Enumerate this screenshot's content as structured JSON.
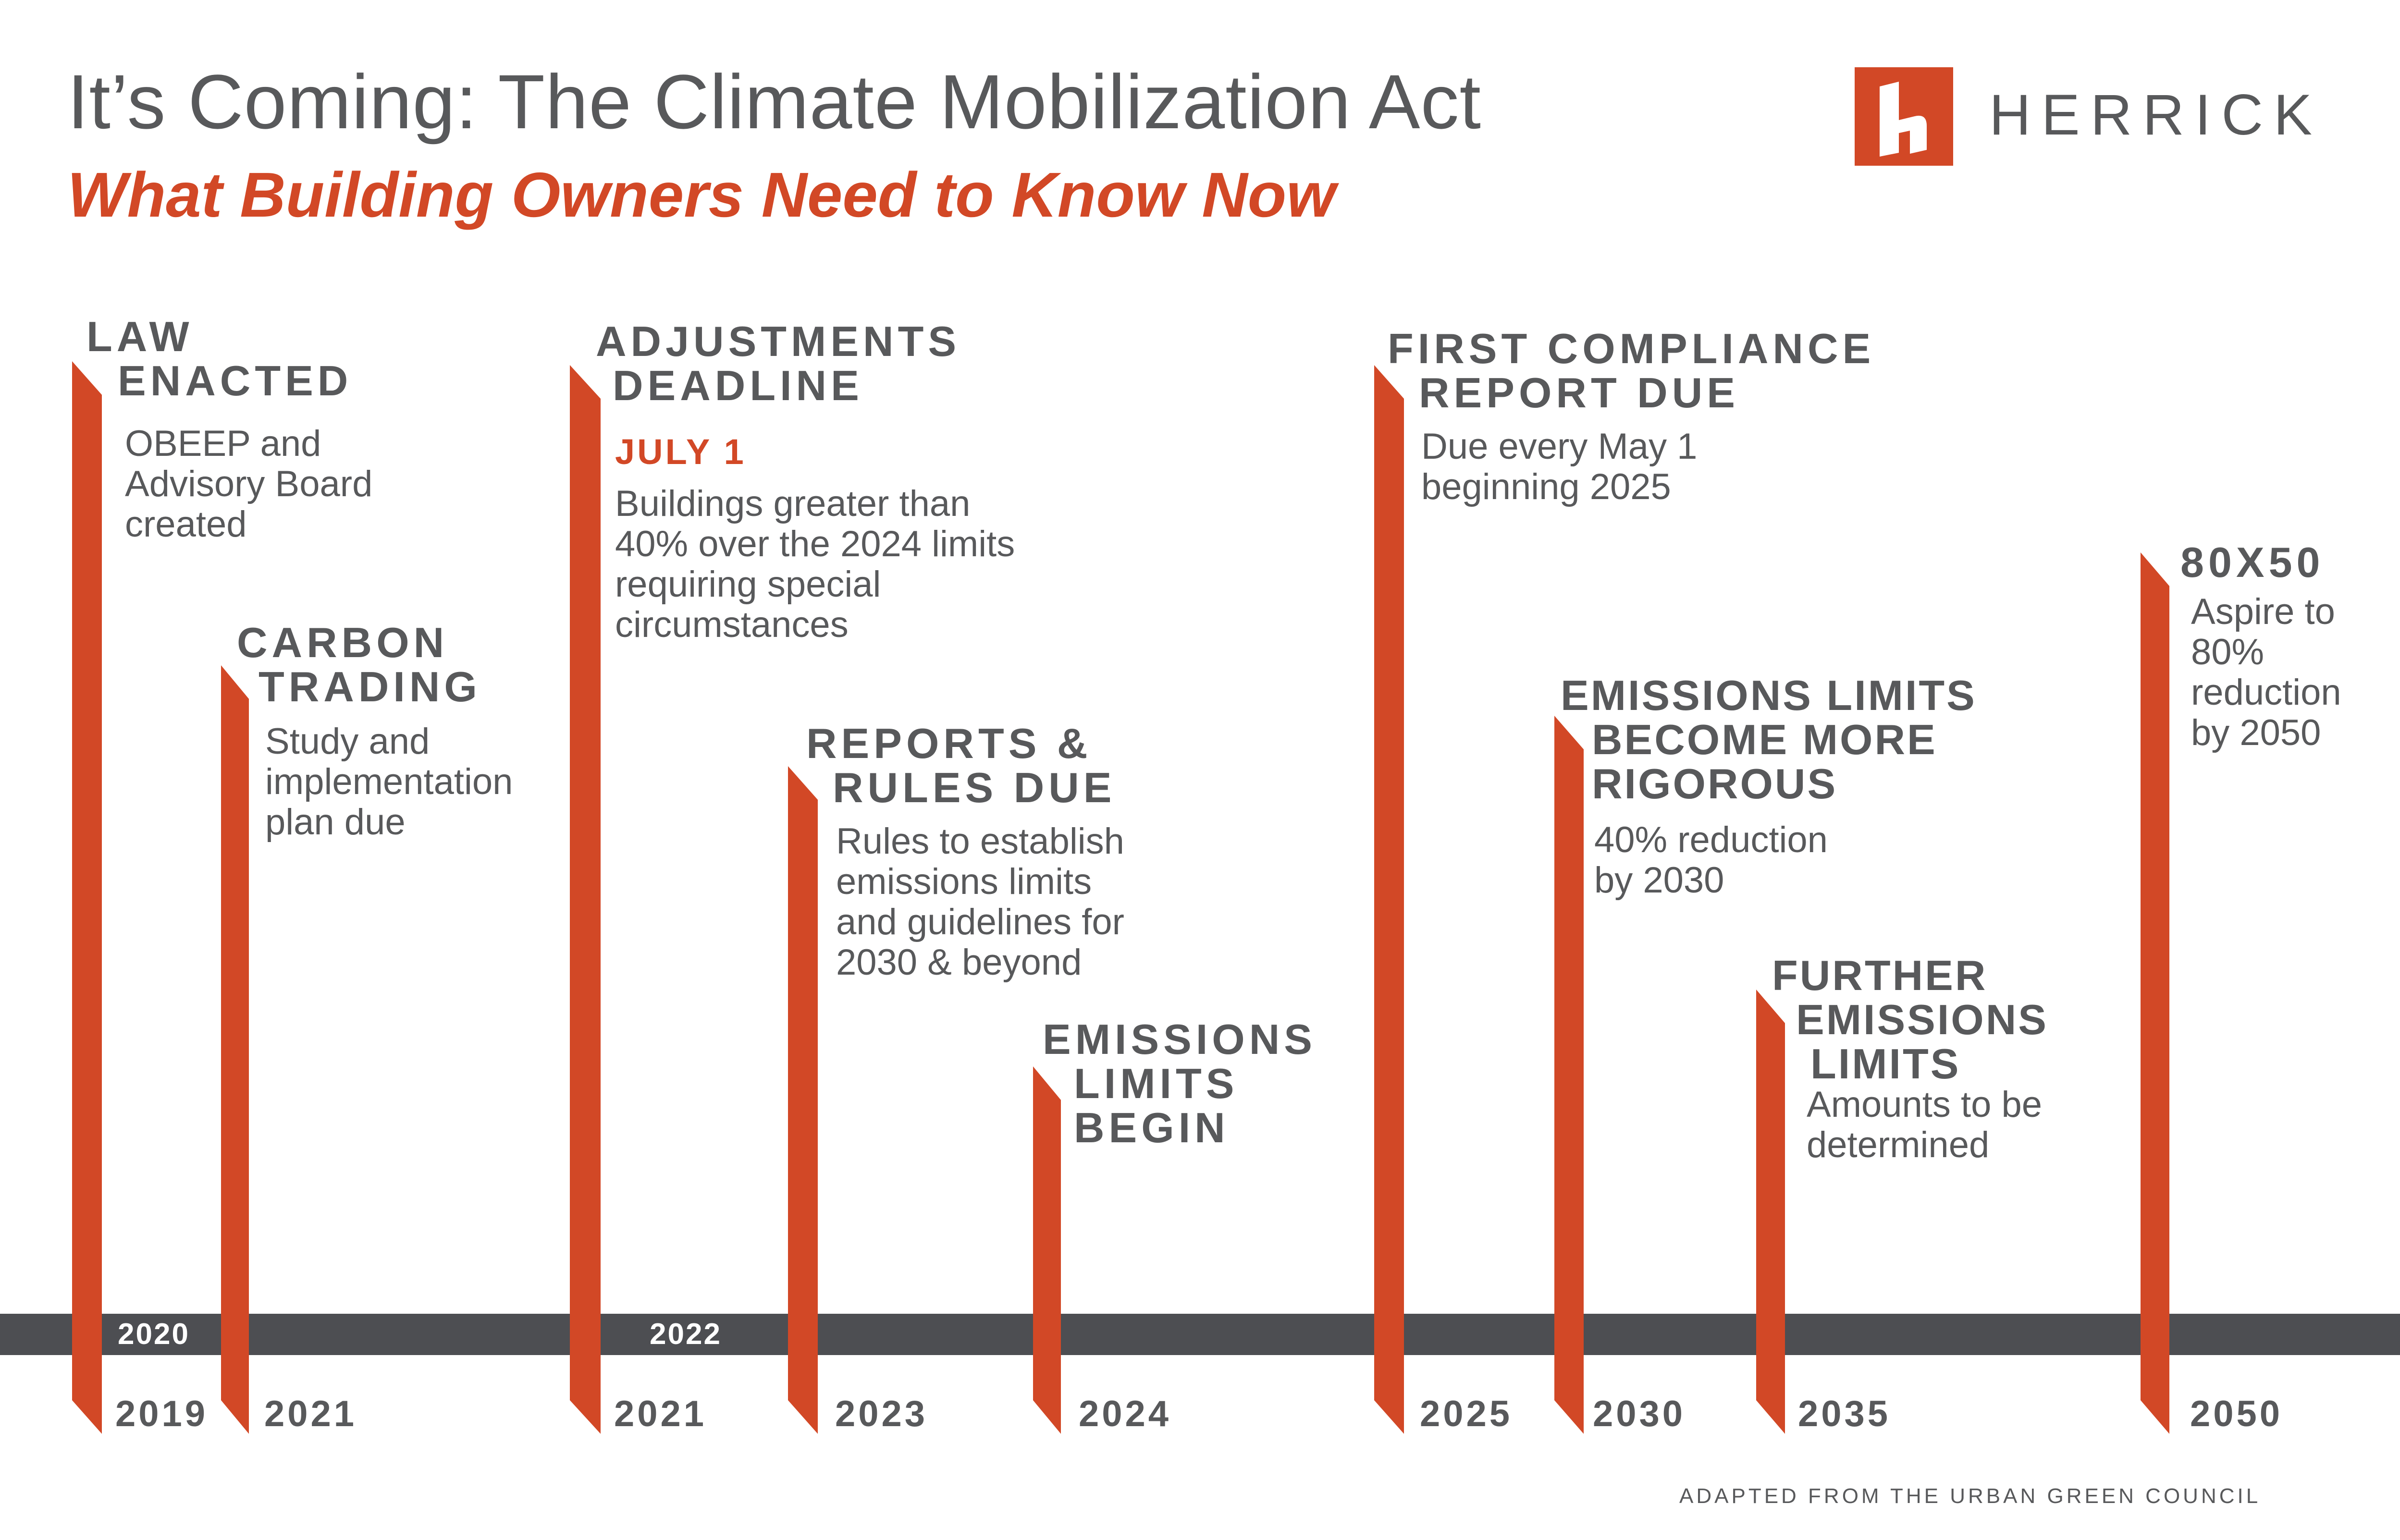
{
  "header": {
    "title": "It’s Coming: The Climate Mobilization Act",
    "subtitle": "What Building Owners Need to Know Now"
  },
  "brand": {
    "name": "HERRICK",
    "color": "#d24826"
  },
  "axis": {
    "years": [
      "2020",
      "2022"
    ]
  },
  "milestones": [
    {
      "heading": [
        "LAW",
        "ENACTED"
      ],
      "body": [
        "OBEEP and",
        "Advisory Board",
        "created"
      ],
      "year": "2019"
    },
    {
      "heading": [
        "CARBON",
        "TRADING"
      ],
      "body": [
        "Study and",
        "implementation",
        "plan due"
      ],
      "year": "2021"
    },
    {
      "heading": [
        "ADJUSTMENTS",
        "DEADLINE"
      ],
      "highlight": "JULY 1",
      "body": [
        "Buildings greater than",
        "40% over the 2024 limits",
        "requiring special",
        "circumstances"
      ],
      "year": "2021"
    },
    {
      "heading": [
        "REPORTS &",
        "RULES DUE"
      ],
      "body": [
        "Rules to establish",
        "emissions limits",
        "and guidelines for",
        "2030 & beyond"
      ],
      "year": "2023"
    },
    {
      "heading": [
        "EMISSIONS",
        "LIMITS",
        "BEGIN"
      ],
      "year": "2024"
    },
    {
      "heading": [
        "FIRST COMPLIANCE",
        "REPORT DUE"
      ],
      "body": [
        "Due every May 1",
        "beginning 2025"
      ],
      "year": "2025"
    },
    {
      "heading": [
        "EMISSIONS LIMITS",
        "BECOME MORE",
        "RIGOROUS"
      ],
      "body": [
        "40% reduction",
        "by 2030"
      ],
      "year": "2030"
    },
    {
      "heading": [
        "FURTHER",
        "EMISSIONS",
        "LIMITS"
      ],
      "body": [
        "Amounts to be",
        "determined"
      ],
      "year": "2035"
    },
    {
      "heading": [
        "80X50"
      ],
      "body": [
        "Aspire to",
        "80%",
        "reduction",
        "by 2050"
      ],
      "year": "2050"
    }
  ],
  "footer": {
    "credit": "ADAPTED FROM THE URBAN GREEN COUNCIL"
  }
}
